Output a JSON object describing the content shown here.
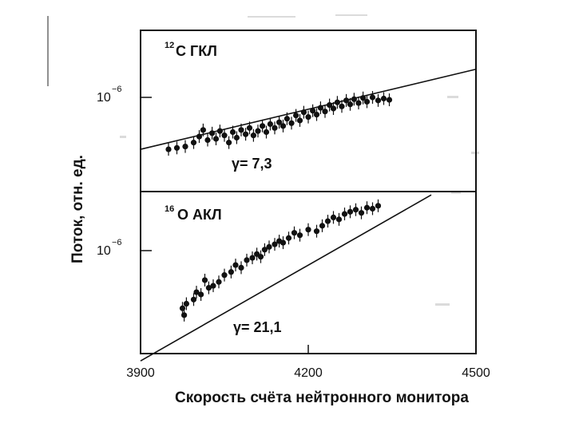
{
  "chart_data": [
    {
      "type": "scatter",
      "panel": "top",
      "label_sup": "12",
      "label_main": "C ГКЛ",
      "gamma_text": "γ= 7,3",
      "y_tick_base": "10",
      "y_tick_exp": "−6",
      "fit_line": {
        "x": [
          3900,
          4500
        ],
        "y_rel": [
          0.42,
          1.6
        ]
      },
      "points": [
        {
          "x": 3950,
          "y": 0.42
        },
        {
          "x": 3965,
          "y": 0.43
        },
        {
          "x": 3980,
          "y": 0.44
        },
        {
          "x": 3995,
          "y": 0.47
        },
        {
          "x": 4005,
          "y": 0.52
        },
        {
          "x": 4012,
          "y": 0.58
        },
        {
          "x": 4020,
          "y": 0.49
        },
        {
          "x": 4028,
          "y": 0.55
        },
        {
          "x": 4035,
          "y": 0.5
        },
        {
          "x": 4042,
          "y": 0.57
        },
        {
          "x": 4050,
          "y": 0.53
        },
        {
          "x": 4058,
          "y": 0.47
        },
        {
          "x": 4065,
          "y": 0.56
        },
        {
          "x": 4072,
          "y": 0.51
        },
        {
          "x": 4080,
          "y": 0.58
        },
        {
          "x": 4088,
          "y": 0.54
        },
        {
          "x": 4095,
          "y": 0.6
        },
        {
          "x": 4102,
          "y": 0.53
        },
        {
          "x": 4110,
          "y": 0.57
        },
        {
          "x": 4118,
          "y": 0.62
        },
        {
          "x": 4125,
          "y": 0.56
        },
        {
          "x": 4132,
          "y": 0.64
        },
        {
          "x": 4140,
          "y": 0.6
        },
        {
          "x": 4148,
          "y": 0.66
        },
        {
          "x": 4155,
          "y": 0.62
        },
        {
          "x": 4162,
          "y": 0.7
        },
        {
          "x": 4170,
          "y": 0.65
        },
        {
          "x": 4178,
          "y": 0.74
        },
        {
          "x": 4185,
          "y": 0.68
        },
        {
          "x": 4192,
          "y": 0.78
        },
        {
          "x": 4200,
          "y": 0.72
        },
        {
          "x": 4208,
          "y": 0.8
        },
        {
          "x": 4215,
          "y": 0.75
        },
        {
          "x": 4222,
          "y": 0.84
        },
        {
          "x": 4230,
          "y": 0.79
        },
        {
          "x": 4238,
          "y": 0.88
        },
        {
          "x": 4245,
          "y": 0.83
        },
        {
          "x": 4252,
          "y": 0.92
        },
        {
          "x": 4260,
          "y": 0.86
        },
        {
          "x": 4268,
          "y": 0.95
        },
        {
          "x": 4275,
          "y": 0.89
        },
        {
          "x": 4282,
          "y": 0.97
        },
        {
          "x": 4290,
          "y": 0.91
        },
        {
          "x": 4298,
          "y": 0.99
        },
        {
          "x": 4305,
          "y": 0.93
        },
        {
          "x": 4315,
          "y": 1.0
        },
        {
          "x": 4325,
          "y": 0.95
        },
        {
          "x": 4335,
          "y": 0.98
        },
        {
          "x": 4345,
          "y": 0.96
        }
      ]
    },
    {
      "type": "scatter",
      "panel": "bottom",
      "label_sup": "16",
      "label_main": "O АКЛ",
      "gamma_text": "γ= 21,1",
      "y_tick_base": "10",
      "y_tick_exp": "−6",
      "fit_line": {
        "x": [
          3900,
          4420
        ],
        "y_rel": [
          0.1,
          3.2
        ]
      },
      "points": [
        {
          "x": 3975,
          "y": 0.3
        },
        {
          "x": 3978,
          "y": 0.26
        },
        {
          "x": 3982,
          "y": 0.33
        },
        {
          "x": 3995,
          "y": 0.36
        },
        {
          "x": 4000,
          "y": 0.42
        },
        {
          "x": 4008,
          "y": 0.4
        },
        {
          "x": 4015,
          "y": 0.54
        },
        {
          "x": 4022,
          "y": 0.46
        },
        {
          "x": 4030,
          "y": 0.48
        },
        {
          "x": 4040,
          "y": 0.52
        },
        {
          "x": 4050,
          "y": 0.6
        },
        {
          "x": 4062,
          "y": 0.64
        },
        {
          "x": 4070,
          "y": 0.74
        },
        {
          "x": 4080,
          "y": 0.7
        },
        {
          "x": 4090,
          "y": 0.82
        },
        {
          "x": 4100,
          "y": 0.86
        },
        {
          "x": 4108,
          "y": 0.93
        },
        {
          "x": 4115,
          "y": 0.88
        },
        {
          "x": 4122,
          "y": 1.02
        },
        {
          "x": 4130,
          "y": 1.08
        },
        {
          "x": 4140,
          "y": 1.14
        },
        {
          "x": 4148,
          "y": 1.22
        },
        {
          "x": 4155,
          "y": 1.18
        },
        {
          "x": 4165,
          "y": 1.3
        },
        {
          "x": 4175,
          "y": 1.45
        },
        {
          "x": 4185,
          "y": 1.38
        },
        {
          "x": 4200,
          "y": 1.55
        },
        {
          "x": 4215,
          "y": 1.5
        },
        {
          "x": 4225,
          "y": 1.68
        },
        {
          "x": 4235,
          "y": 1.85
        },
        {
          "x": 4245,
          "y": 2.0
        },
        {
          "x": 4255,
          "y": 1.92
        },
        {
          "x": 4265,
          "y": 2.15
        },
        {
          "x": 4275,
          "y": 2.25
        },
        {
          "x": 4285,
          "y": 2.35
        },
        {
          "x": 4295,
          "y": 2.2
        },
        {
          "x": 4305,
          "y": 2.45
        },
        {
          "x": 4315,
          "y": 2.4
        },
        {
          "x": 4325,
          "y": 2.55
        }
      ]
    }
  ],
  "x_axis": {
    "ticks": [
      3900,
      4200,
      4500
    ],
    "tick_labels": [
      "3900",
      "4200",
      "4500"
    ],
    "range": [
      3900,
      4500
    ]
  },
  "xlabel": "Скорость счёта нейтронного монитора",
  "ylabel": "Поток, отн. ед."
}
